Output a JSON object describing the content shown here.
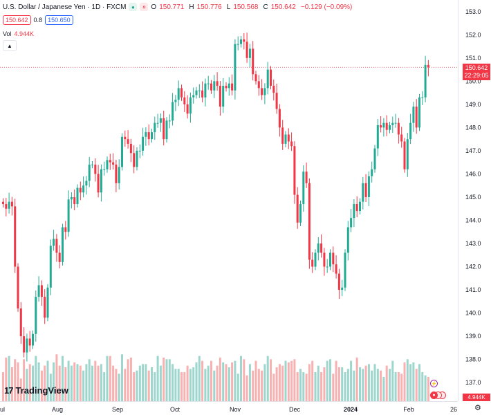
{
  "legend": {
    "symbol": "U.S. Dollar / Japanese Yen · 1D · FXCM",
    "open_key": "O",
    "open_val": "150.771",
    "high_key": "H",
    "high_val": "150.776",
    "low_key": "L",
    "low_val": "150.568",
    "close_key": "C",
    "close_val": "150.642",
    "change": "−0.129 (−0.09%)"
  },
  "quote": {
    "sell": "150.642",
    "spread": "0.8",
    "buy": "150.650"
  },
  "volume": {
    "label": "Vol",
    "value": "4.944K"
  },
  "price_label": {
    "price": "150.642",
    "countdown": "22:29:05"
  },
  "vol_label": "4.944K",
  "brand": {
    "mark": "17",
    "name": "TradingView"
  },
  "colors": {
    "up": "#22ab94",
    "down": "#f23645",
    "vol_up": "#92d2c6",
    "vol_down": "#f7a9a7"
  },
  "chart_data": {
    "type": "candlestick",
    "ylim": [
      136.2,
      153.5
    ],
    "y_ticks": [
      137.0,
      138.0,
      139.0,
      140.0,
      141.0,
      142.0,
      143.0,
      144.0,
      145.0,
      146.0,
      147.0,
      148.0,
      149.0,
      150.0,
      151.0,
      152.0,
      153.0
    ],
    "x_ticks": [
      "ul",
      "Aug",
      "Sep",
      "Oct",
      "Nov",
      "Dec",
      "2024",
      "Feb",
      "26"
    ],
    "close_series": [
      144.7,
      144.5,
      144.8,
      144.6,
      142.0,
      140.2,
      139.0,
      138.3,
      138.9,
      138.6,
      139.1,
      140.7,
      141.2,
      140.7,
      139.8,
      141.1,
      142.9,
      143.2,
      142.6,
      142.2,
      143.7,
      143.5,
      144.9,
      145.0,
      144.7,
      145.4,
      145.2,
      145.5,
      145.7,
      146.4,
      146.4,
      146.0,
      145.2,
      146.2,
      146.2,
      146.6,
      146.5,
      146.4,
      145.6,
      146.3,
      147.6,
      147.5,
      147.3,
      146.9,
      146.3,
      147.0,
      147.0,
      147.6,
      147.8,
      147.5,
      147.8,
      148.2,
      148.2,
      148.4,
      147.5,
      148.3,
      148.3,
      149.1,
      149.2,
      149.7,
      149.3,
      149.0,
      148.6,
      149.3,
      149.4,
      149.6,
      149.6,
      149.3,
      149.9,
      149.9,
      149.6,
      150.0,
      149.8,
      148.9,
      149.8,
      149.7,
      149.9,
      149.6,
      151.6,
      151.6,
      151.8,
      151.7,
      151.0,
      151.4,
      150.3,
      150.0,
      149.7,
      149.4,
      149.7,
      150.5,
      149.8,
      149.5,
      148.8,
      148.0,
      147.3,
      147.7,
      147.4,
      147.2,
      145.1,
      143.9,
      144.7,
      146.1,
      145.6,
      142.3,
      142.0,
      142.6,
      143.0,
      142.6,
      142.0,
      142.0,
      142.6,
      142.1,
      141.7,
      141.0,
      141.1,
      142.6,
      143.7,
      144.1,
      144.7,
      144.4,
      144.8,
      145.6,
      145.0,
      145.9,
      146.2,
      147.1,
      148.1,
      148.0,
      148.2,
      147.9,
      148.1,
      148.2,
      148.2,
      147.7,
      147.4,
      146.2,
      147.5,
      148.2,
      148.9,
      148.0,
      149.3,
      149.3,
      150.7,
      150.6
    ],
    "volume_series": [
      1.8,
      2.7,
      2.8,
      2.1,
      2.6,
      2.4,
      1.4,
      2.6,
      2.0,
      2.3,
      2.2,
      2.8,
      2.4,
      1.9,
      2.2,
      2.5,
      1.7,
      2.4,
      2.9,
      2.2,
      2.8,
      2.1,
      2.5,
      2.2,
      2.4,
      2.3,
      2.2,
      1.9,
      2.3,
      2.6,
      2.2,
      2.5,
      2.2,
      2.3,
      1.8,
      2.8,
      2.8,
      2.2,
      2.0,
      1.7,
      2.9,
      2.0,
      2.6,
      2.7,
      1.8,
      1.9,
      2.2,
      2.3,
      2.3,
      1.9,
      2.1,
      1.8,
      2.8,
      2.2,
      2.7,
      2.6,
      2.6,
      2.3,
      2.0,
      2.0,
      1.8,
      1.8,
      2.2,
      2.0,
      2.1,
      2.4,
      2.8,
      2.5,
      2.0,
      2.2,
      2.5,
      1.9,
      2.2,
      2.7,
      2.4,
      2.3,
      2.1,
      2.4,
      2.5,
      1.7,
      2.8,
      2.6,
      1.6,
      2.3,
      1.9,
      2.5,
      2.0,
      1.9,
      2.3,
      2.8,
      2.6,
      1.7,
      2.1,
      2.3,
      2.2,
      2.5,
      2.4,
      2.5,
      2.6,
      1.8,
      2.0,
      1.8,
      1.7,
      2.3,
      2.5,
      1.8,
      2.2,
      1.8,
      2.1,
      2.5,
      2.6,
      1.7,
      2.5,
      2.1,
      2.1,
      1.8,
      2.0,
      2.5,
      1.9,
      2.7,
      2.1,
      2.0,
      2.2,
      2.3,
      1.9,
      2.3,
      2.0,
      1.9,
      1.5,
      2.2,
      2.0,
      2.5,
      1.8,
      1.8,
      1.7,
      2.4,
      2.6,
      2.3,
      2.4,
      2.0,
      2.3,
      1.8,
      1.6,
      1.5
    ]
  }
}
